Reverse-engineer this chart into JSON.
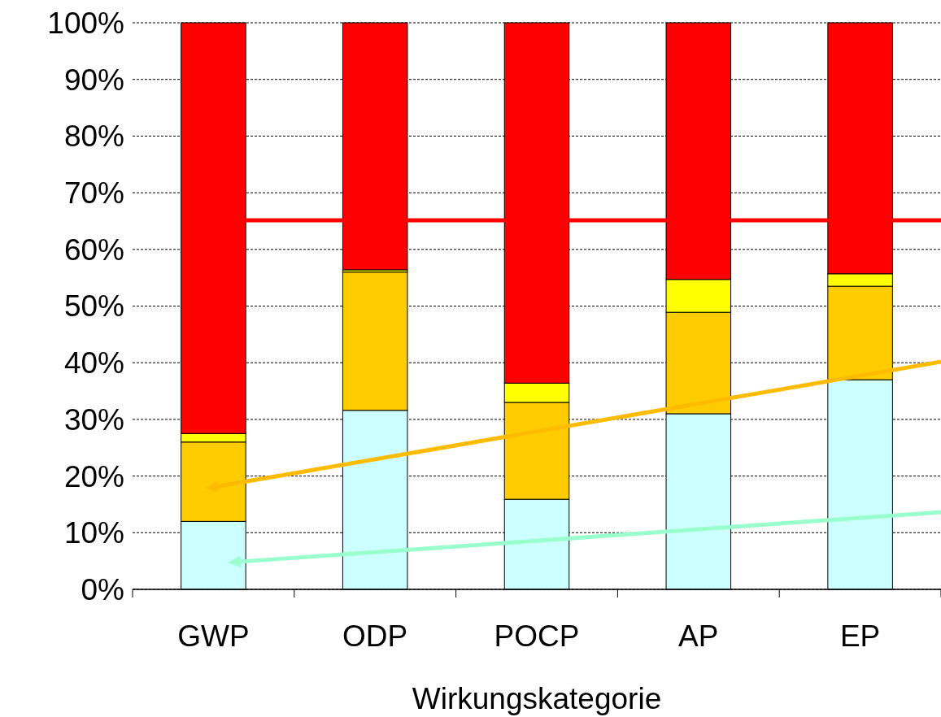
{
  "chart_data": {
    "type": "bar",
    "stacked": true,
    "xlabel": "Wirkungskategorie",
    "categories": [
      "GWP",
      "ODP",
      "POCP",
      "AP",
      "EP"
    ],
    "series": [
      {
        "color": "#ccffff",
        "values": [
          12,
          31.6,
          15.9,
          31,
          37
        ]
      },
      {
        "color": "#ffcc00",
        "values": [
          14,
          24.4,
          17.1,
          17.9,
          16.5
        ]
      },
      {
        "color": "#ffff00",
        "values": [
          1.5,
          0.4,
          3.4,
          5.8,
          2.2
        ]
      },
      {
        "color": "#ff0000",
        "values": [
          72.5,
          43.6,
          63.6,
          45.3,
          44.3
        ]
      }
    ],
    "ylim": [
      0,
      100
    ],
    "yticks": [
      {
        "value": 0,
        "label": "0%"
      },
      {
        "value": 10,
        "label": "10%"
      },
      {
        "value": 20,
        "label": "20%"
      },
      {
        "value": 30,
        "label": "30%"
      },
      {
        "value": 40,
        "label": "40%"
      },
      {
        "value": 50,
        "label": "50%"
      },
      {
        "value": 60,
        "label": "60%"
      },
      {
        "value": 70,
        "label": "70%"
      },
      {
        "value": 80,
        "label": "80%"
      },
      {
        "value": 90,
        "label": "90%"
      },
      {
        "value": 100,
        "label": "100%"
      }
    ],
    "grid": "y"
  }
}
